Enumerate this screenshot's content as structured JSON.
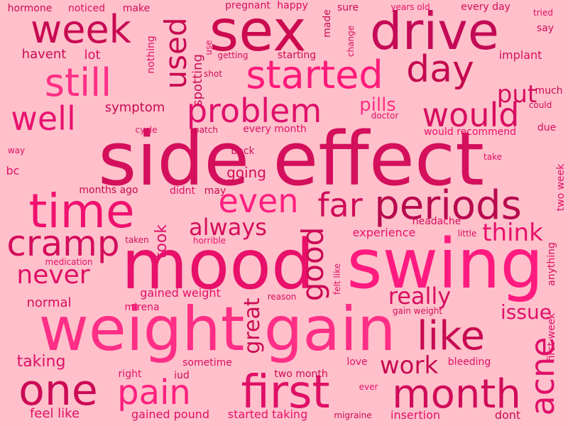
{
  "background": "#ffc0cb",
  "words": [
    {
      "text": "side effect",
      "color": "#d40f5c"
    },
    {
      "text": "mood",
      "color": "#e8106a"
    },
    {
      "text": "swing",
      "color": "#ff1a80"
    },
    {
      "text": "weight gain",
      "color": "#ff2e86"
    },
    {
      "text": "sex",
      "color": "#cc0a50"
    },
    {
      "text": "drive",
      "color": "#c40a56"
    },
    {
      "text": "time",
      "color": "#f0106e"
    },
    {
      "text": "first",
      "color": "#e00f66"
    },
    {
      "text": "month",
      "color": "#d00c5a"
    },
    {
      "text": "periods",
      "color": "#b80a4e"
    },
    {
      "text": "week",
      "color": "#c80a52"
    },
    {
      "text": "started",
      "color": "#ff1a7a"
    },
    {
      "text": "still",
      "color": "#ff2e86"
    },
    {
      "text": "day",
      "color": "#c4094f"
    },
    {
      "text": "problem",
      "color": "#e0106a"
    },
    {
      "text": "would",
      "color": "#d80d60"
    },
    {
      "text": "used",
      "color": "#c80a52"
    },
    {
      "text": "well",
      "color": "#e81370"
    },
    {
      "text": "even",
      "color": "#ff2080"
    },
    {
      "text": "far",
      "color": "#d00c5a"
    },
    {
      "text": "one",
      "color": "#cc0a55"
    },
    {
      "text": "pain",
      "color": "#ff2080"
    },
    {
      "text": "like",
      "color": "#c80a52"
    },
    {
      "text": "cramp",
      "color": "#d40d5c"
    },
    {
      "text": "good",
      "color": "#cc0a55"
    },
    {
      "text": "acne",
      "color": "#e0106a"
    },
    {
      "text": "put",
      "color": "#d80d5e"
    },
    {
      "text": "never",
      "color": "#e00f66"
    },
    {
      "text": "always",
      "color": "#d40d5c"
    },
    {
      "text": "think",
      "color": "#e8106a"
    },
    {
      "text": "really",
      "color": "#d80d60"
    },
    {
      "text": "work",
      "color": "#c80a52"
    },
    {
      "text": "issue",
      "color": "#e0106a"
    },
    {
      "text": "great",
      "color": "#cc0a55"
    },
    {
      "text": "pills",
      "color": "#ff2e86"
    },
    {
      "text": "took",
      "color": "#e0106a"
    },
    {
      "text": "taking",
      "color": "#e00f66"
    },
    {
      "text": "feel like",
      "color": "#e00f66"
    },
    {
      "text": "normal",
      "color": "#d80d5e"
    },
    {
      "text": "havent",
      "color": "#cc0a55"
    },
    {
      "text": "lot",
      "color": "#e00f66"
    },
    {
      "text": "going",
      "color": "#d40d5c"
    },
    {
      "text": "experience",
      "color": "#e8106a"
    },
    {
      "text": "symptom",
      "color": "#c80a52"
    },
    {
      "text": "spotting",
      "color": "#cc0a55"
    },
    {
      "text": "bc",
      "color": "#e00f66"
    },
    {
      "text": "made",
      "color": "#cc0a55"
    },
    {
      "text": "implant",
      "color": "#d80d5e"
    },
    {
      "text": "every month",
      "color": "#e00f66"
    },
    {
      "text": "back",
      "color": "#d40d5c"
    },
    {
      "text": "gained weight",
      "color": "#e0106a"
    },
    {
      "text": "months ago",
      "color": "#c80a52"
    },
    {
      "text": "didnt",
      "color": "#e00f66"
    },
    {
      "text": "may",
      "color": "#cc0a55"
    },
    {
      "text": "headache",
      "color": "#d80d5e"
    },
    {
      "text": "starting",
      "color": "#cc0a55"
    },
    {
      "text": "nothing",
      "color": "#e00f66"
    },
    {
      "text": "would recommend",
      "color": "#e8106a"
    },
    {
      "text": "due",
      "color": "#d80d5e"
    },
    {
      "text": "much",
      "color": "#cc0a55"
    },
    {
      "text": "every day",
      "color": "#d40d5c"
    },
    {
      "text": "sure",
      "color": "#cc0a55"
    },
    {
      "text": "happy",
      "color": "#d80d5e"
    },
    {
      "text": "pregnant",
      "color": "#d40d5c"
    },
    {
      "text": "hormone",
      "color": "#cc0a55"
    },
    {
      "text": "noticed",
      "color": "#e00f66"
    },
    {
      "text": "make",
      "color": "#d40d5c"
    },
    {
      "text": "gained pound",
      "color": "#e00f66"
    },
    {
      "text": "started taking",
      "color": "#e8106a"
    },
    {
      "text": "insertion",
      "color": "#e0106a"
    },
    {
      "text": "dont",
      "color": "#cc0a55"
    },
    {
      "text": "two month",
      "color": "#cc0a55"
    },
    {
      "text": "love",
      "color": "#e00f66"
    },
    {
      "text": "bleeding",
      "color": "#e00f66"
    },
    {
      "text": "mirena",
      "color": "#e00f66"
    },
    {
      "text": "right",
      "color": "#e00f66"
    },
    {
      "text": "iud",
      "color": "#cc0a55"
    },
    {
      "text": "sometime",
      "color": "#d80d5e"
    },
    {
      "text": "first week",
      "color": "#e0106a"
    },
    {
      "text": "two week",
      "color": "#e00f66"
    },
    {
      "text": "anything",
      "color": "#d80d5e"
    },
    {
      "text": "migraine",
      "color": "#cc0a55"
    },
    {
      "text": "gain weight",
      "color": "#d40d5c"
    },
    {
      "text": "take",
      "color": "#e00f66"
    },
    {
      "text": "could",
      "color": "#cc0a55"
    },
    {
      "text": "say",
      "color": "#d40d5c"
    },
    {
      "text": "tried",
      "color": "#e00f66"
    },
    {
      "text": "years old",
      "color": "#e8106a"
    },
    {
      "text": "change",
      "color": "#d80d5e"
    },
    {
      "text": "use",
      "color": "#e00f66"
    },
    {
      "text": "getting",
      "color": "#d40d5c"
    },
    {
      "text": "shot",
      "color": "#cc0a55"
    },
    {
      "text": "doctor",
      "color": "#e00f66"
    },
    {
      "text": "cycle",
      "color": "#e00f66"
    },
    {
      "text": "patch",
      "color": "#cc0a55"
    },
    {
      "text": "way",
      "color": "#e00f66"
    },
    {
      "text": "taken",
      "color": "#d40d5c"
    },
    {
      "text": "medication",
      "color": "#e00f66"
    },
    {
      "text": "horrible",
      "color": "#e8106a"
    },
    {
      "text": "little",
      "color": "#d40d5c"
    },
    {
      "text": "felt like",
      "color": "#e00f66"
    },
    {
      "text": "reason",
      "color": "#d40d5c"
    },
    {
      "text": "ever",
      "color": "#e8106a"
    }
  ]
}
